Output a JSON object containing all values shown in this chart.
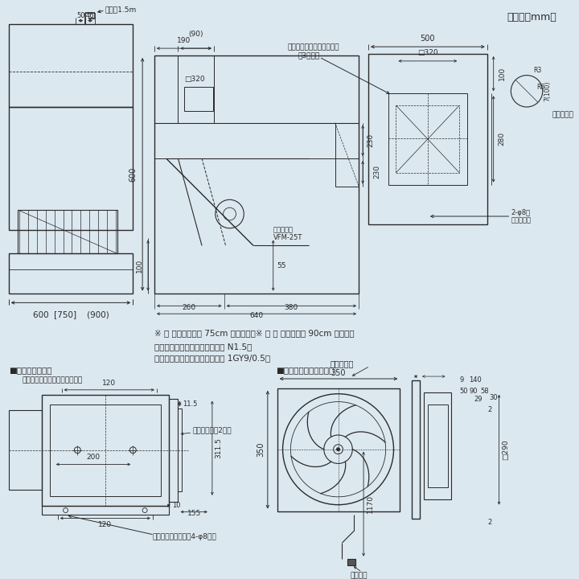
{
  "bg_color": "#dce8f0",
  "lc": "#2a2a2a",
  "title_unit": "（単位：mm）",
  "note1": "※ ［ ］内の寸法は 75cm 巾タイプ　※ （ ） 内の寸法は 90cm 巾タイプ",
  "note2": "色調：ブラック塗装（マンセル N1.5）",
  "note3": "　　　ホワイト塗装（マンセル 1GY9/0.5）",
  "sec1_title": "■取付寸法詳細図",
  "sec1_sub": "（化粧枠を外した状態を示す）",
  "sec2_title": "■同梱換気扇（不燃形）"
}
